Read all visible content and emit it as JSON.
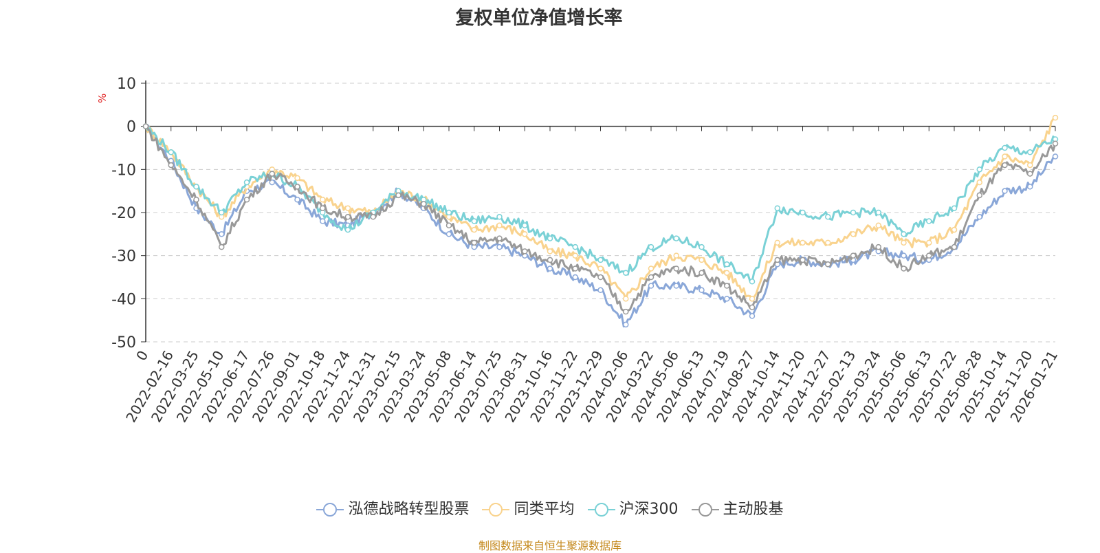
{
  "chart_data": {
    "type": "line",
    "title": "复权单位净值增长率",
    "ylabel": "%",
    "xlabel": "",
    "ylim": [
      -50,
      10
    ],
    "yticks": [
      10,
      0,
      -10,
      -20,
      -30,
      -40,
      -50
    ],
    "grid": true,
    "legend_position": "bottom",
    "categories": [
      "0",
      "2022-02-16",
      "2022-03-25",
      "2022-05-10",
      "2022-06-17",
      "2022-07-26",
      "2022-09-01",
      "2022-10-18",
      "2022-11-24",
      "2022-12-31",
      "2023-02-15",
      "2023-03-24",
      "2023-05-08",
      "2023-06-14",
      "2023-07-25",
      "2023-08-31",
      "2023-10-16",
      "2023-11-22",
      "2023-12-29",
      "2024-02-06",
      "2024-03-22",
      "2024-05-06",
      "2024-06-13",
      "2024-07-19",
      "2024-08-27",
      "2024-10-14",
      "2024-11-20",
      "2024-12-27",
      "2025-02-13",
      "2025-03-24",
      "2025-05-06",
      "2025-06-13",
      "2025-07-22",
      "2025-08-28",
      "2025-10-14",
      "2025-11-20",
      "2026-01-21"
    ],
    "series": [
      {
        "name": "泓德战略转型股票",
        "color": "#8aa7d8",
        "values": [
          0,
          -8,
          -19,
          -25,
          -15,
          -13,
          -17,
          -22,
          -23,
          -20,
          -15,
          -19,
          -25,
          -28,
          -28,
          -30,
          -33,
          -35,
          -38,
          -46,
          -37,
          -37,
          -38,
          -40,
          -44,
          -32,
          -31,
          -32,
          -31,
          -29,
          -30,
          -31,
          -28,
          -21,
          -15,
          -14,
          -7
        ]
      },
      {
        "name": "同类平均",
        "color": "#f9d38e",
        "values": [
          0,
          -6,
          -14,
          -21,
          -14,
          -10,
          -12,
          -17,
          -19,
          -20,
          -15,
          -17,
          -21,
          -24,
          -23,
          -25,
          -29,
          -30,
          -33,
          -40,
          -33,
          -30,
          -31,
          -34,
          -40,
          -27,
          -27,
          -27,
          -25,
          -23,
          -27,
          -27,
          -24,
          -13,
          -7,
          -9,
          2
        ]
      },
      {
        "name": "沪深300",
        "color": "#7ad1d6",
        "values": [
          0,
          -6,
          -14,
          -20,
          -13,
          -11,
          -14,
          -20,
          -24,
          -20,
          -15,
          -17,
          -20,
          -22,
          -21,
          -23,
          -26,
          -28,
          -31,
          -34,
          -28,
          -26,
          -28,
          -32,
          -36,
          -19,
          -20,
          -21,
          -20,
          -20,
          -25,
          -22,
          -19,
          -10,
          -5,
          -6,
          -3
        ]
      },
      {
        "name": "主动股基",
        "color": "#999999",
        "values": [
          0,
          -9,
          -17,
          -28,
          -17,
          -11,
          -14,
          -19,
          -21,
          -21,
          -16,
          -18,
          -23,
          -27,
          -26,
          -29,
          -31,
          -33,
          -35,
          -43,
          -35,
          -33,
          -34,
          -37,
          -42,
          -31,
          -31,
          -32,
          -30,
          -28,
          -33,
          -30,
          -28,
          -16,
          -9,
          -11,
          -4
        ]
      }
    ]
  },
  "legend": {
    "items": [
      {
        "name": "泓德战略转型股票",
        "color": "#8aa7d8"
      },
      {
        "name": "同类平均",
        "color": "#f9d38e"
      },
      {
        "name": "沪深300",
        "color": "#7ad1d6"
      },
      {
        "name": "主动股基",
        "color": "#999999"
      }
    ]
  },
  "footer": {
    "source": "制图数据来自恒生聚源数据库"
  }
}
